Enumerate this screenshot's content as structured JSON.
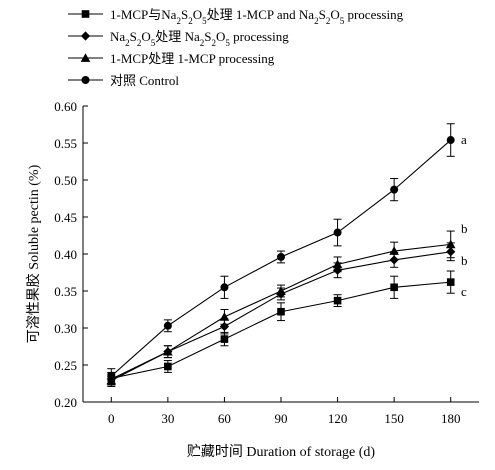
{
  "chart_data": {
    "type": "line",
    "title": "",
    "xlabel": "贮藏时间 Duration of storage (d)",
    "ylabel": "可溶性果胶 Soluble pectin (%)",
    "x": [
      0,
      30,
      60,
      90,
      120,
      150,
      180
    ],
    "xlim": [
      -15,
      195
    ],
    "ylim": [
      0.2,
      0.6
    ],
    "yticks": [
      "0.20",
      "0.25",
      "0.30",
      "0.35",
      "0.40",
      "0.45",
      "0.50",
      "0.55",
      "0.60"
    ],
    "xticks": [
      "0",
      "30",
      "60",
      "90",
      "120",
      "150",
      "180"
    ],
    "legend_position": "top-left",
    "grid": false,
    "series": [
      {
        "name": "1-MCP与Na2S2O5处理 1-MCP and Na2S2O5 processing",
        "marker": "square",
        "values": [
          0.232,
          0.248,
          0.285,
          0.322,
          0.337,
          0.355,
          0.362
        ],
        "errors": [
          0.008,
          0.008,
          0.009,
          0.012,
          0.008,
          0.015,
          0.015
        ],
        "end_label": "c"
      },
      {
        "name": "Na2S2O5处理 Na2S2O5 processing",
        "marker": "diamond",
        "values": [
          0.231,
          0.268,
          0.302,
          0.346,
          0.378,
          0.392,
          0.403
        ],
        "errors": [
          0.008,
          0.008,
          0.01,
          0.008,
          0.01,
          0.01,
          0.012
        ],
        "end_label": "b"
      },
      {
        "name": "1-MCP处理 1-MCP processing",
        "marker": "triangle",
        "values": [
          0.229,
          0.268,
          0.315,
          0.35,
          0.386,
          0.404,
          0.413
        ],
        "errors": [
          0.008,
          0.008,
          0.01,
          0.008,
          0.01,
          0.012,
          0.018
        ],
        "end_label": "b"
      },
      {
        "name": "对照 Control",
        "marker": "circle",
        "values": [
          0.235,
          0.303,
          0.355,
          0.396,
          0.429,
          0.487,
          0.554
        ],
        "errors": [
          0.01,
          0.008,
          0.015,
          0.008,
          0.018,
          0.015,
          0.022
        ],
        "end_label": "a"
      }
    ]
  }
}
